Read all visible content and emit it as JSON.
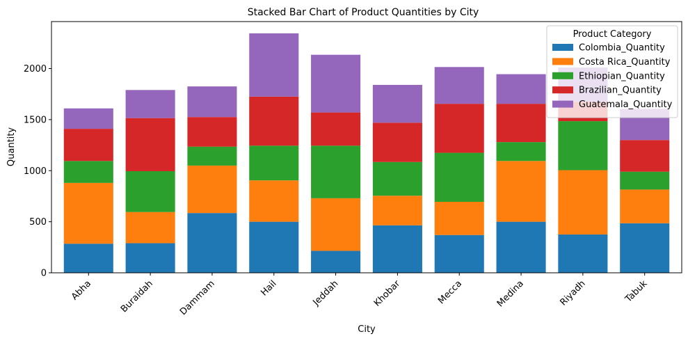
{
  "chart_data": {
    "type": "bar",
    "stacked": true,
    "title": "Stacked Bar Chart of Product Quantities by City",
    "xlabel": "City",
    "ylabel": "Quantity",
    "categories": [
      "Abha",
      "Buraidah",
      "Dammam",
      "Hail",
      "Jeddah",
      "Khobar",
      "Mecca",
      "Medina",
      "Riyadh",
      "Tabuk"
    ],
    "ylim": [
      0,
      2460
    ],
    "yticks": [
      0,
      500,
      1000,
      1500,
      2000
    ],
    "ytick_labels": [
      "0",
      "500",
      "1000",
      "1500",
      "2000"
    ],
    "grid": false,
    "legend": {
      "title": "Product Category",
      "placement": "top-right"
    },
    "series": [
      {
        "name": "Colombia_Quantity",
        "color": "#1f77b4",
        "values": [
          285,
          290,
          585,
          500,
          215,
          465,
          370,
          500,
          375,
          485
        ]
      },
      {
        "name": "Costa Rica_Quantity",
        "color": "#ff7f0e",
        "values": [
          595,
          305,
          465,
          405,
          515,
          290,
          325,
          595,
          630,
          330
        ]
      },
      {
        "name": "Ethiopian_Quantity",
        "color": "#2ca02c",
        "values": [
          215,
          400,
          185,
          340,
          515,
          330,
          480,
          185,
          480,
          175
        ]
      },
      {
        "name": "Brazilian_Quantity",
        "color": "#d62728",
        "values": [
          315,
          520,
          290,
          480,
          325,
          385,
          480,
          375,
          190,
          310
        ]
      },
      {
        "name": "Guatemala_Quantity",
        "color": "#9467bd",
        "values": [
          200,
          275,
          300,
          620,
          565,
          370,
          360,
          290,
          335,
          305
        ]
      }
    ]
  }
}
